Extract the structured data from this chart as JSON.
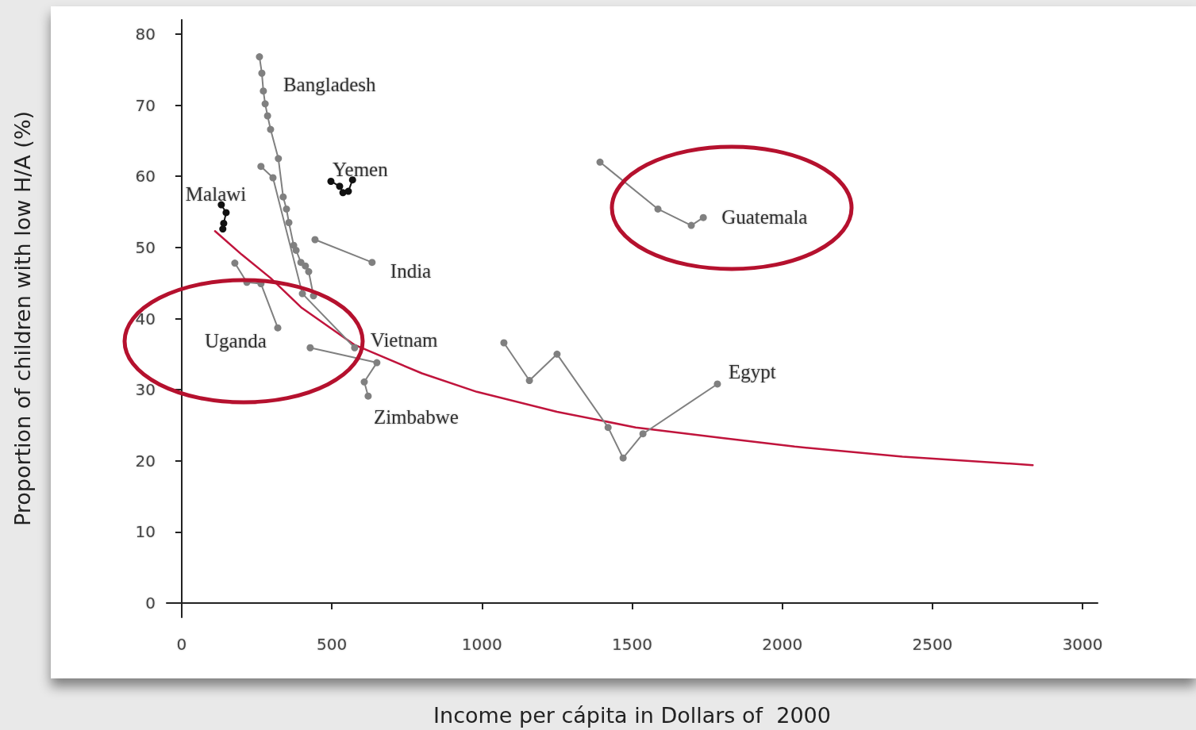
{
  "chart_data": {
    "type": "line",
    "xlabel": "Income per cápita in Dollars of  2000",
    "ylabel": "Proportion of children with low H/A (%)",
    "xlim": [
      -50,
      3050
    ],
    "xticks": [
      0,
      500,
      1000,
      1500,
      2000,
      2500,
      3000
    ],
    "ylim": [
      -2,
      82
    ],
    "yticks": [
      0,
      10,
      20,
      30,
      40,
      50,
      60,
      70,
      80
    ],
    "grid": false,
    "marker": "circle",
    "line_style": "solid",
    "series": [
      {
        "name": "Bangladesh",
        "color": "#808080",
        "x": [
          259,
          267,
          272,
          278,
          286,
          296,
          322,
          338,
          349,
          357,
          373,
          381,
          397,
          412,
          423,
          439
        ],
        "values": [
          76.8,
          74.5,
          72.0,
          70.2,
          68.5,
          66.6,
          62.5,
          57.1,
          55.4,
          53.5,
          50.3,
          49.6,
          47.9,
          47.4,
          46.6,
          43.2
        ]
      },
      {
        "name": "Vietnam",
        "color": "#808080",
        "x": [
          264,
          304,
          402,
          576
        ],
        "values": [
          61.4,
          59.8,
          43.5,
          35.9
        ]
      },
      {
        "name": "Yemen",
        "color": "#111111",
        "x": [
          497,
          526,
          537,
          555,
          569
        ],
        "values": [
          59.3,
          58.6,
          57.7,
          57.9,
          59.5
        ]
      },
      {
        "name": "Malawi",
        "color": "#111111",
        "x": [
          132,
          148,
          140,
          137
        ],
        "values": [
          56.0,
          54.9,
          53.4,
          52.6
        ]
      },
      {
        "name": "India",
        "color": "#808080",
        "x": [
          444,
          634
        ],
        "values": [
          51.1,
          47.9
        ]
      },
      {
        "name": "Uganda",
        "color": "#808080",
        "x": [
          177,
          217,
          264,
          320
        ],
        "values": [
          47.8,
          45.1,
          44.9,
          38.7
        ]
      },
      {
        "name": "Zimbabwe",
        "color": "#808080",
        "x": [
          428,
          650,
          608,
          621
        ],
        "values": [
          35.9,
          33.8,
          31.1,
          29.1
        ]
      },
      {
        "name": "Guatemala",
        "color": "#808080",
        "x": [
          1393,
          1586,
          1697,
          1737
        ],
        "values": [
          62.0,
          55.4,
          53.1,
          54.2
        ]
      },
      {
        "name": "Egypt",
        "color": "#808080",
        "x": [
          1073,
          1158,
          1250,
          1420,
          1470,
          1536,
          1784
        ],
        "values": [
          36.6,
          31.3,
          35.0,
          24.7,
          20.4,
          23.8,
          30.8
        ]
      },
      {
        "color": "#c0143c",
        "marker": "none",
        "x": [
          111,
          200,
          296,
          400,
          576,
          800,
          983,
          1250,
          1512,
          1800,
          2041,
          2400,
          2834
        ],
        "values": [
          52.3,
          49.0,
          45.7,
          41.5,
          36.3,
          32.3,
          29.7,
          26.9,
          24.7,
          23.2,
          22.0,
          20.6,
          19.4
        ]
      }
    ]
  }
}
